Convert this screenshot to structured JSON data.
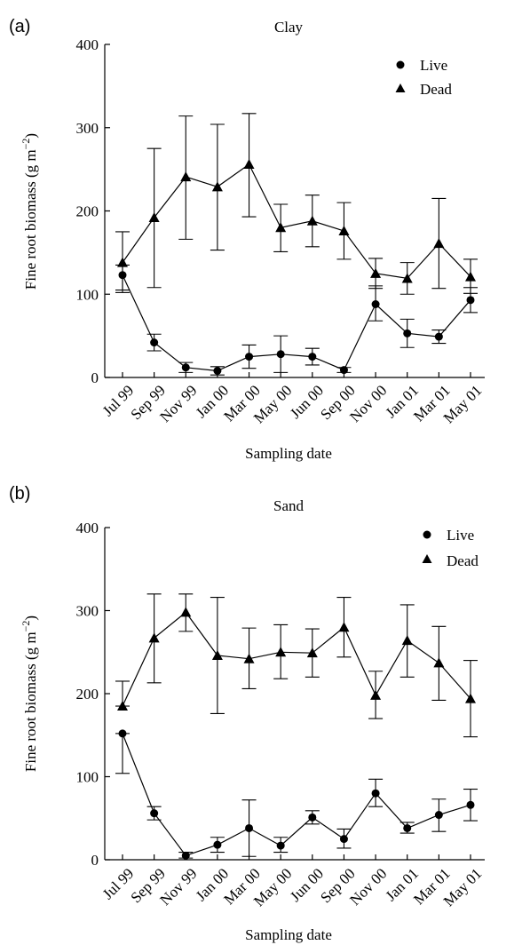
{
  "chart_data": [
    {
      "type": "line",
      "panel_label": "(a)",
      "title": "Clay",
      "xlabel": "Sampling date",
      "ylabel": "Fine root biomass (g m",
      "ylabel_sup": "−2",
      "ylabel_close": ")",
      "ylim": [
        0,
        400
      ],
      "yticks": [
        "0",
        "100",
        "200",
        "300",
        "400"
      ],
      "legend_position": "top-right",
      "categories": [
        "Jul 99",
        "Sep 99",
        "Nov 99",
        "Jan 00",
        "Mar 00",
        "May 00",
        "Jun 00",
        "Sep 00",
        "Nov 00",
        "Jan 01",
        "Mar 01",
        "May 01"
      ],
      "series": [
        {
          "name": "Live",
          "marker": "circle",
          "values": [
            123,
            42,
            12,
            8,
            25,
            28,
            25,
            9,
            88,
            53,
            49,
            93
          ],
          "err_high": [
            135,
            52,
            18,
            13,
            39,
            50,
            35,
            12,
            110,
            70,
            57,
            108
          ],
          "err_low": [
            105,
            32,
            6,
            3,
            11,
            6,
            15,
            6,
            68,
            36,
            41,
            78
          ]
        },
        {
          "name": "Dead",
          "marker": "triangle",
          "values": [
            138,
            192,
            241,
            229,
            256,
            180,
            188,
            176,
            125,
            119,
            161,
            121
          ],
          "err_high": [
            175,
            275,
            314,
            304,
            317,
            208,
            219,
            210,
            143,
            138,
            215,
            142
          ],
          "err_low": [
            102,
            108,
            166,
            153,
            193,
            151,
            157,
            142,
            107,
            100,
            107,
            101
          ]
        }
      ]
    },
    {
      "type": "line",
      "panel_label": "(b)",
      "title": "Sand",
      "xlabel": "Sampling date",
      "ylabel": "Fine root biomass (g m",
      "ylabel_sup": "−2",
      "ylabel_close": ")",
      "ylim": [
        0,
        400
      ],
      "yticks": [
        "0",
        "100",
        "200",
        "300",
        "400"
      ],
      "legend_position": "top-right",
      "categories": [
        "Jul 99",
        "Sep 99",
        "Nov 99",
        "Jan 00",
        "Mar 00",
        "May 00",
        "Jun 00",
        "Sep 00",
        "Nov 00",
        "Jan 01",
        "Mar 01",
        "May 01"
      ],
      "series": [
        {
          "name": "Live",
          "marker": "circle",
          "values": [
            152,
            56,
            5,
            18,
            38,
            17,
            51,
            25,
            80,
            38,
            54,
            66
          ],
          "err_high": [
            152,
            64,
            9,
            27,
            72,
            27,
            59,
            37,
            97,
            45,
            73,
            85
          ],
          "err_low": [
            104,
            48,
            2,
            9,
            4,
            9,
            43,
            14,
            64,
            32,
            34,
            47
          ]
        },
        {
          "name": "Dead",
          "marker": "triangle",
          "values": [
            185,
            267,
            298,
            246,
            242,
            250,
            249,
            280,
            198,
            264,
            237,
            194
          ],
          "err_high": [
            215,
            320,
            320,
            316,
            279,
            283,
            278,
            316,
            227,
            307,
            281,
            240
          ],
          "err_low": [
            185,
            213,
            275,
            176,
            206,
            218,
            220,
            244,
            170,
            220,
            192,
            148
          ]
        }
      ]
    }
  ]
}
